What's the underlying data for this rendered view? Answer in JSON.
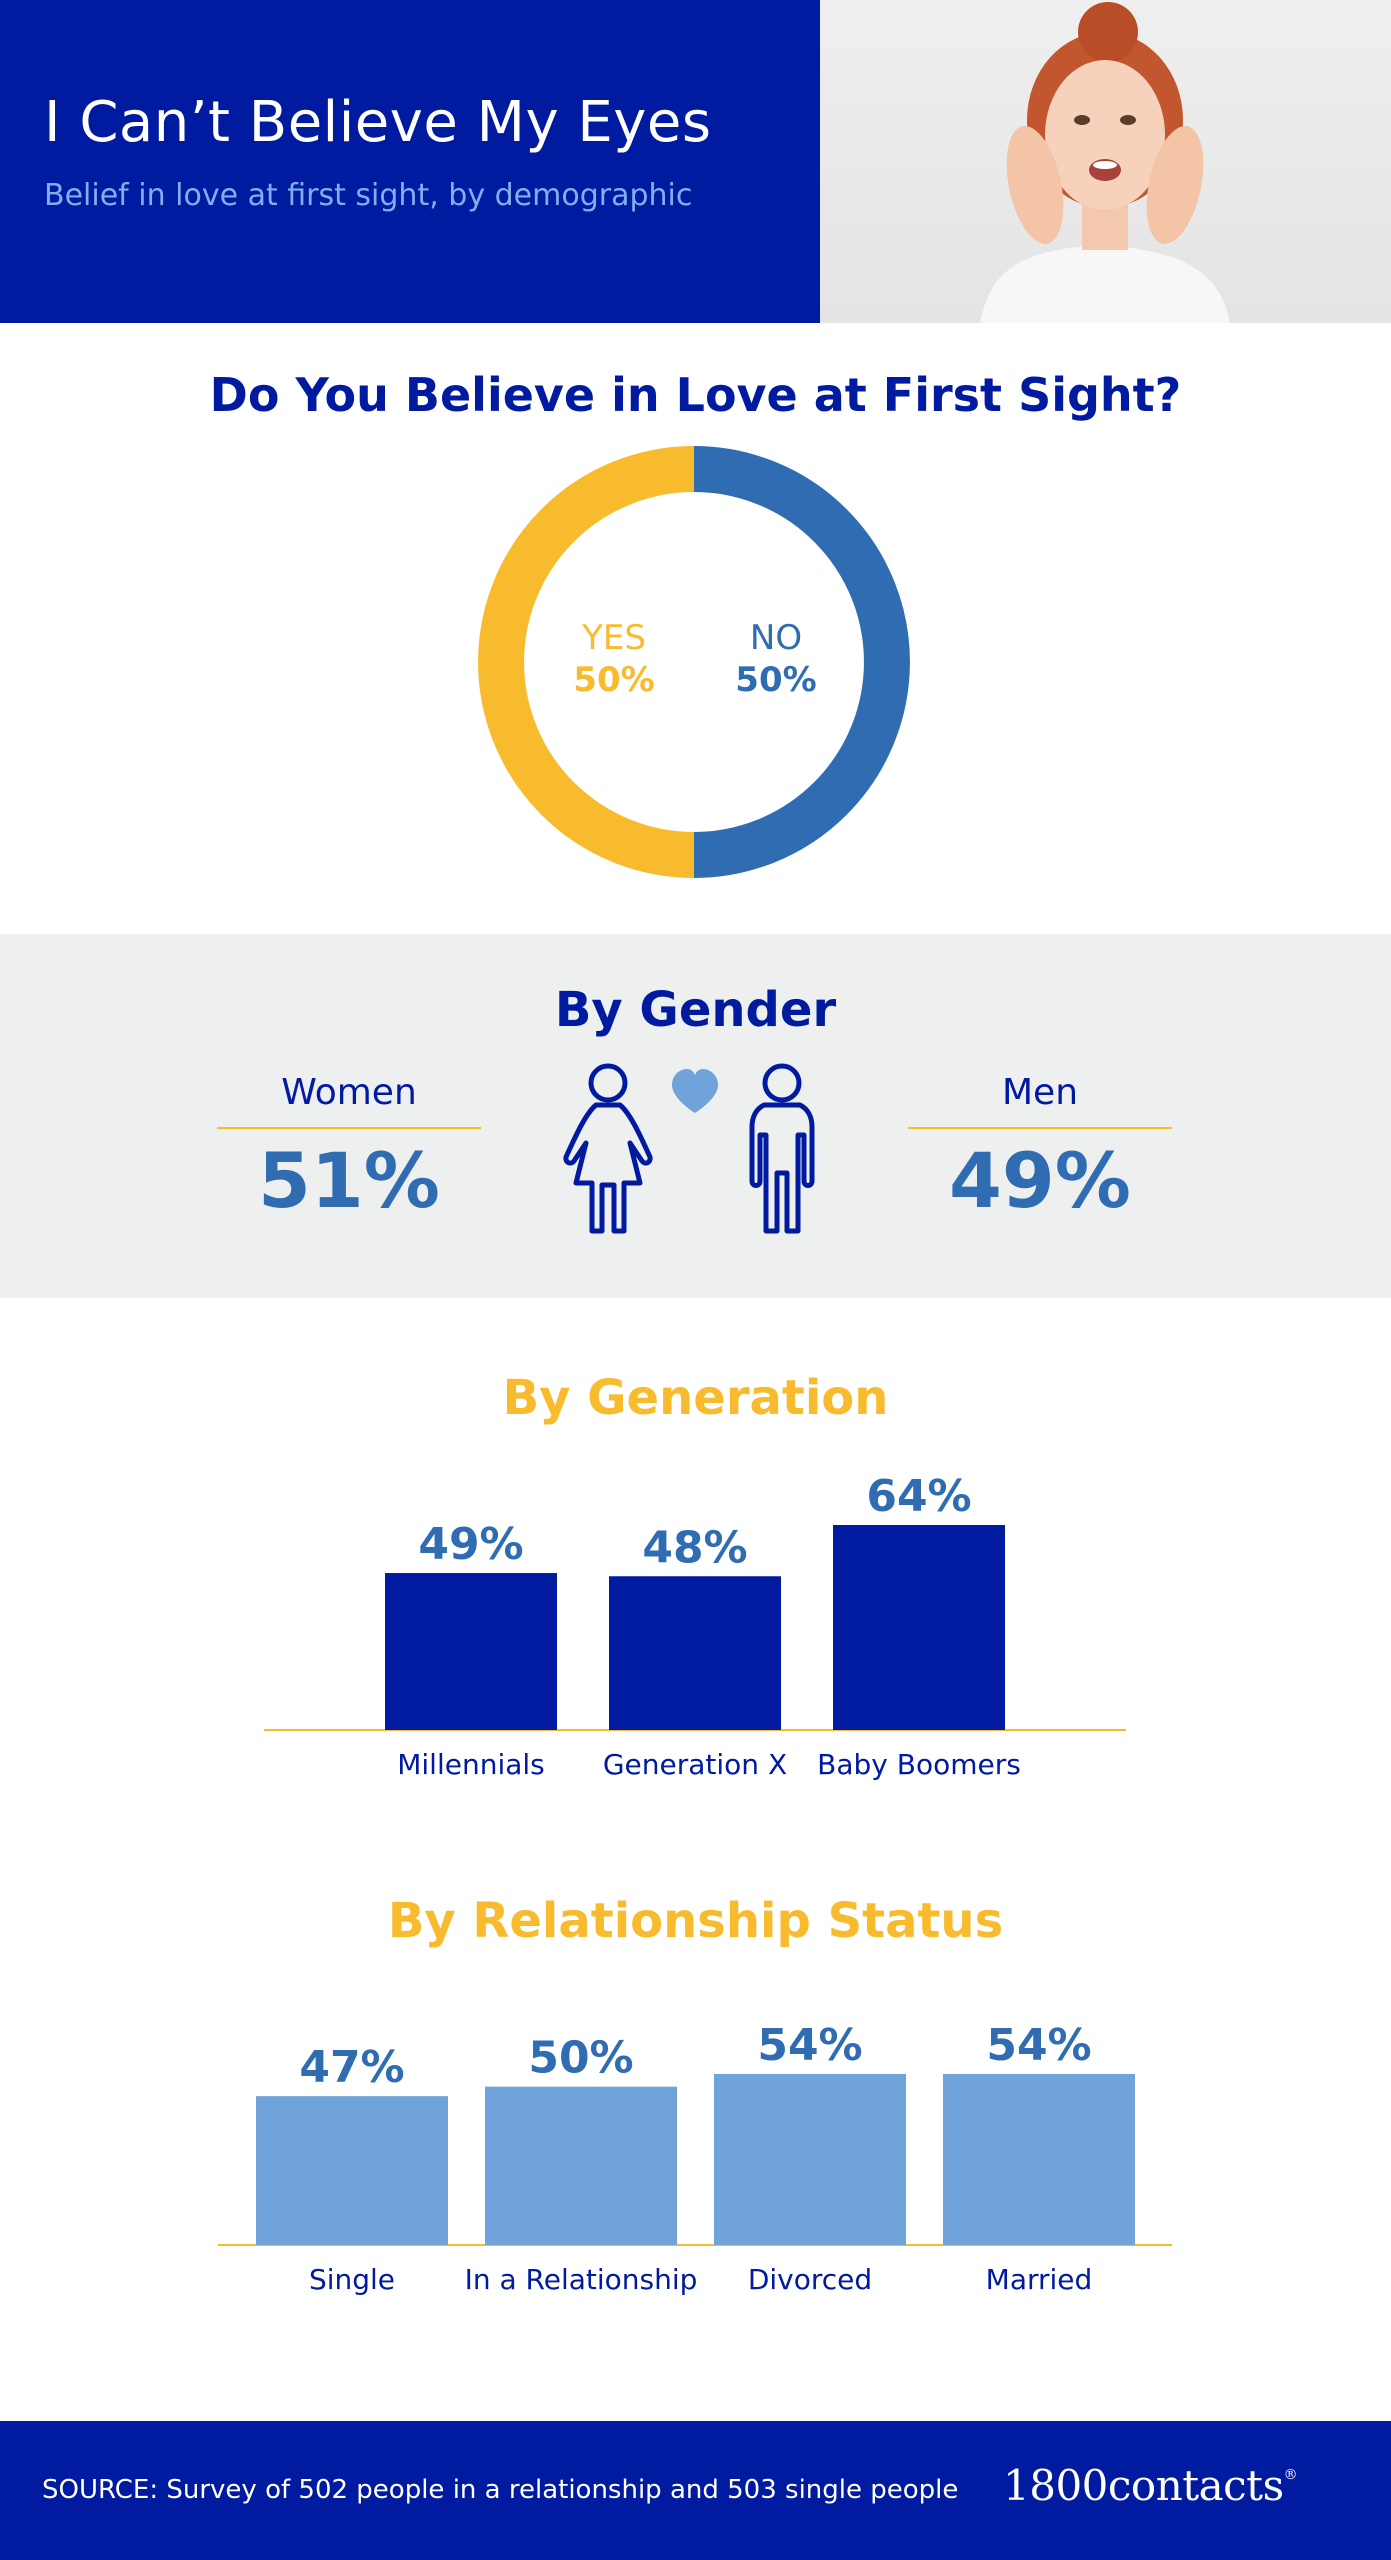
{
  "header": {
    "title": "I Can’t Believe My Eyes",
    "subtitle": "Belief in love at first sight, by demographic"
  },
  "colors": {
    "navy": "#001aa0",
    "blue": "#2f6cb2",
    "light_blue": "#6fa3da",
    "yellow": "#f8bb2d",
    "gray_band": "#eeefef"
  },
  "sections": {
    "belief_heading": "Do You Believe in Love at First Sight?",
    "gender_heading": "By Gender",
    "generation_heading": "By Generation",
    "relationship_heading": "By Relationship Status"
  },
  "donut": {
    "yes_label": "YES",
    "yes_pct": "50%",
    "no_label": "NO",
    "no_pct": "50%"
  },
  "gender": {
    "women_label": "Women",
    "women_value": "51%",
    "men_label": "Men",
    "men_value": "49%"
  },
  "footer": {
    "source": "SOURCE: Survey of 502 people in a relationship and 503 single people",
    "brand": "1800contacts"
  },
  "chart_data": [
    {
      "type": "pie",
      "title": "Do You Believe in Love at First Sight?",
      "categories": [
        "YES",
        "NO"
      ],
      "values": [
        50,
        50
      ],
      "colors": [
        "#f8bb2d",
        "#2f6cb2"
      ]
    },
    {
      "type": "table",
      "title": "By Gender",
      "categories": [
        "Women",
        "Men"
      ],
      "values": [
        51,
        49
      ]
    },
    {
      "type": "bar",
      "title": "By Generation",
      "categories": [
        "Millennials",
        "Generation X",
        "Baby Boomers"
      ],
      "values": [
        49,
        48,
        64
      ],
      "labels": [
        "49%",
        "48%",
        "64%"
      ],
      "color": "#001aa0"
    },
    {
      "type": "bar",
      "title": "By Relationship Status",
      "categories": [
        "Single",
        "In a Relationship",
        "Divorced",
        "Married"
      ],
      "values": [
        47,
        50,
        54,
        54
      ],
      "labels": [
        "47%",
        "50%",
        "54%",
        "54%"
      ],
      "color": "#6fa3da"
    }
  ]
}
